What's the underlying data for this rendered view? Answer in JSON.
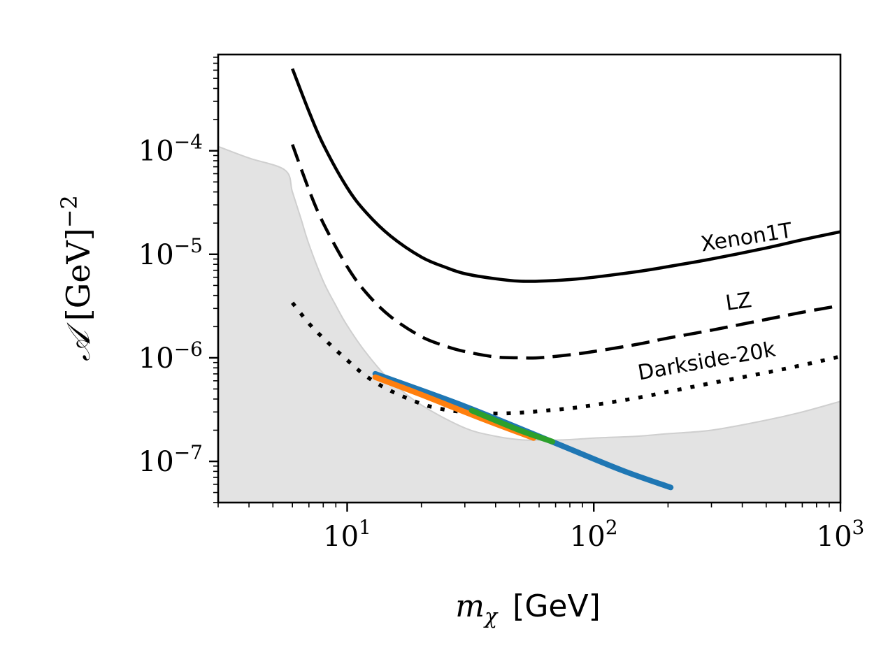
{
  "chart_data": {
    "type": "line",
    "title": "",
    "xlabel": {
      "symbol": "m",
      "sub": "χ",
      "unit": "[GeV]"
    },
    "ylabel": {
      "symbol": "𝒜",
      "unit": "[GeV]",
      "exp": "−2"
    },
    "xscale": "log",
    "yscale": "log",
    "xlim": [
      3,
      1000
    ],
    "ylim": [
      4e-08,
      0.00085
    ],
    "grid": false,
    "x_ticks": [
      {
        "value": 10,
        "base": "10",
        "exp": "1"
      },
      {
        "value": 100,
        "base": "10",
        "exp": "2"
      },
      {
        "value": 1000,
        "base": "10",
        "exp": "3"
      }
    ],
    "y_ticks": [
      {
        "value": 0.0001,
        "base": "10",
        "exp": "−4"
      },
      {
        "value": 1e-05,
        "base": "10",
        "exp": "−5"
      },
      {
        "value": 1e-06,
        "base": "10",
        "exp": "−6"
      },
      {
        "value": 1e-07,
        "base": "10",
        "exp": "−7"
      }
    ],
    "excluded_region": {
      "name": "shaded region",
      "color": "#e3e3e3",
      "x": [
        3,
        4,
        5.6,
        6,
        6.5,
        7,
        8,
        9,
        10,
        12,
        15,
        20,
        30,
        40,
        50,
        60,
        80,
        100,
        150,
        200,
        300,
        500,
        700,
        1000
      ],
      "y": [
        0.00011,
        8.5e-05,
        6.5e-05,
        4e-05,
        2.2e-05,
        1.25e-05,
        5.5e-06,
        3.2e-06,
        2.05e-06,
        1.1e-06,
        6e-07,
        3.5e-07,
        2.1e-07,
        1.75e-07,
        1.62e-07,
        1.6e-07,
        1.62e-07,
        1.68e-07,
        1.75e-07,
        1.85e-07,
        2e-07,
        2.5e-07,
        3e-07,
        3.8e-07
      ]
    },
    "series": [
      {
        "name": "Xenon1T",
        "style": "solid",
        "color": "#000000",
        "x": [
          6,
          7,
          8,
          10,
          12,
          15,
          20,
          25,
          30,
          40,
          50,
          60,
          80,
          100,
          150,
          200,
          300,
          500,
          700,
          1000
        ],
        "y": [
          0.00062,
          0.00024,
          0.000115,
          4.4e-05,
          2.5e-05,
          1.5e-05,
          9.4e-06,
          7.5e-06,
          6.5e-06,
          5.8e-06,
          5.5e-06,
          5.5e-06,
          5.7e-06,
          6e-06,
          6.8e-06,
          7.6e-06,
          9e-06,
          1.15e-05,
          1.38e-05,
          1.65e-05
        ]
      },
      {
        "name": "LZ",
        "style": "dashed",
        "color": "#000000",
        "x": [
          6,
          7,
          8,
          10,
          12,
          15,
          20,
          25,
          30,
          40,
          50,
          60,
          80,
          100,
          150,
          200,
          300,
          500,
          700,
          1000
        ],
        "y": [
          0.000115,
          4.2e-05,
          2e-05,
          7.6e-06,
          4.2e-06,
          2.5e-06,
          1.6e-06,
          1.3e-06,
          1.15e-06,
          1.02e-06,
          1e-06,
          1e-06,
          1.07e-06,
          1.15e-06,
          1.35e-06,
          1.55e-06,
          1.85e-06,
          2.35e-06,
          2.75e-06,
          3.2e-06
        ]
      },
      {
        "name": "Darkside-20k",
        "style": "dotted",
        "color": "#000000",
        "x": [
          6,
          7,
          8,
          10,
          12,
          15,
          20,
          25,
          30,
          40,
          50,
          60,
          80,
          100,
          150,
          200,
          300,
          500,
          700,
          1000
        ],
        "y": [
          3.4e-06,
          2.15e-06,
          1.55e-06,
          9.5e-07,
          6.6e-07,
          4.8e-07,
          3.6e-07,
          3.15e-07,
          3e-07,
          2.9e-07,
          2.95e-07,
          3.05e-07,
          3.25e-07,
          3.5e-07,
          4.1e-07,
          4.7e-07,
          5.7e-07,
          7.2e-07,
          8.5e-07,
          1.03e-06
        ]
      },
      {
        "name": "blue band",
        "style": "thick",
        "color": "#1f77b4",
        "x": [
          13,
          30,
          70,
          130,
          205
        ],
        "y": [
          7e-07,
          3.4e-07,
          1.5e-07,
          8.2e-08,
          5.6e-08
        ]
      },
      {
        "name": "orange band",
        "style": "thick",
        "color": "#ff7f0e",
        "x": [
          13,
          20,
          35,
          57
        ],
        "y": [
          6.5e-07,
          4.4e-07,
          2.6e-07,
          1.68e-07
        ]
      },
      {
        "name": "green band",
        "style": "thick",
        "color": "#2ca02c",
        "x": [
          32,
          50,
          68
        ],
        "y": [
          3.1e-07,
          2e-07,
          1.55e-07
        ]
      }
    ],
    "annotations": [
      {
        "text": "Xenon1T",
        "x": 420,
        "y": 1.25e-05,
        "angle": -9
      },
      {
        "text": "LZ",
        "x": 390,
        "y": 3e-06,
        "angle": -8
      },
      {
        "text": "Darkside-20k",
        "x": 290,
        "y": 8e-07,
        "angle": -10
      }
    ]
  }
}
